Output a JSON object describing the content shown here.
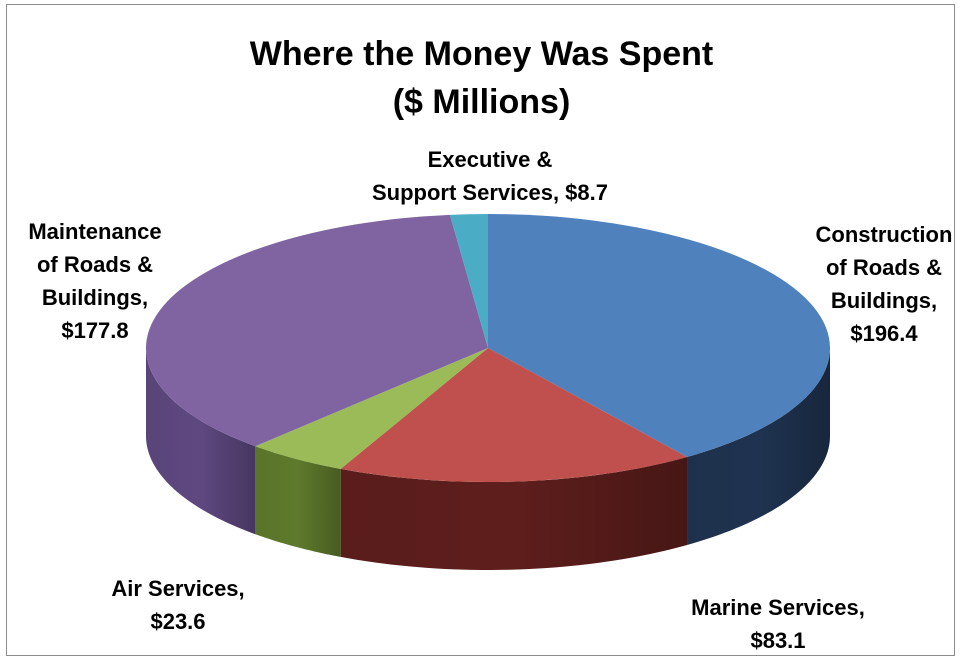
{
  "chart_data": {
    "type": "pie",
    "title_lines": [
      "Where the Money Was Spent",
      "($ Millions)"
    ],
    "slices": [
      {
        "label_lines": [
          "Construction",
          "of Roads &",
          "Buildings,",
          "$196.4"
        ],
        "value": 196.4,
        "color": "#4F81BD",
        "side_color": "#1F3350"
      },
      {
        "label_lines": [
          "Marine Services,",
          "$83.1"
        ],
        "value": 83.1,
        "color": "#C0504D",
        "side_color": "#5E1E1C"
      },
      {
        "label_lines": [
          "Air Services,",
          "$23.6"
        ],
        "value": 23.6,
        "color": "#9BBB59",
        "side_color": "#5E7A2C"
      },
      {
        "label_lines": [
          "Maintenance",
          "of Roads &",
          "Buildings,",
          "$177.8"
        ],
        "value": 177.8,
        "color": "#8064A2",
        "side_color": "#5E4880"
      },
      {
        "label_lines": [
          "Executive &",
          "Support Services, $8.7"
        ],
        "value": 8.7,
        "color": "#4BACC6",
        "side_color": "#2E7F95"
      }
    ],
    "start": "12 o'clock, clockwise"
  }
}
